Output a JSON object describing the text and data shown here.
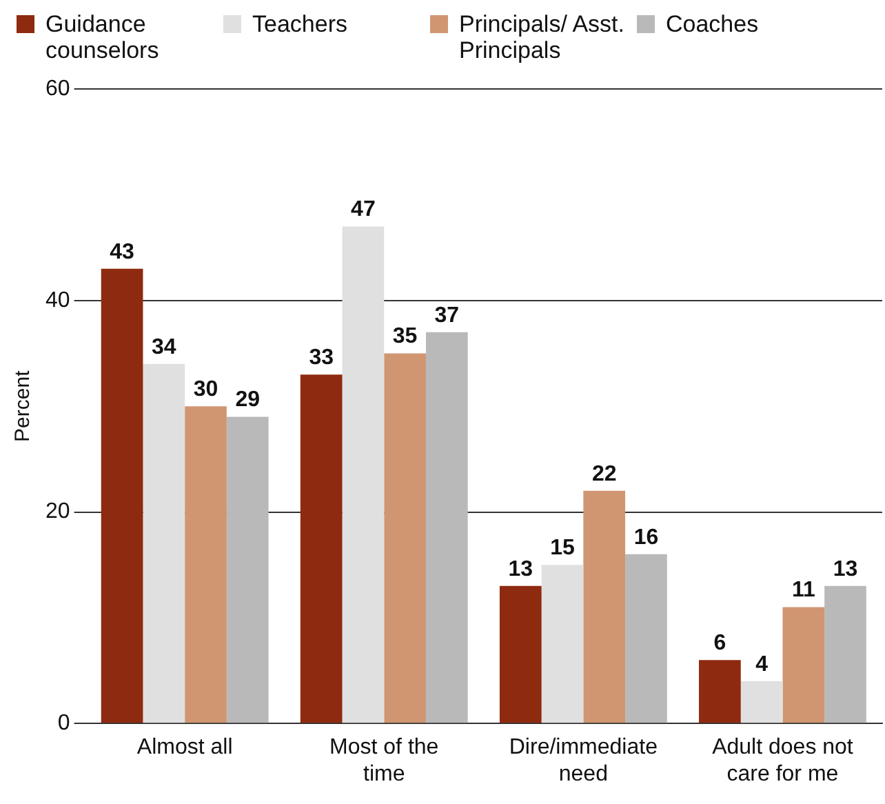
{
  "chart_data": {
    "type": "bar",
    "ylabel": "Percent",
    "categories": [
      "Almost all",
      "Most of the time",
      "Dire/immediate need",
      "Adult does not care for me"
    ],
    "series": [
      {
        "name": "Guidance counselors",
        "color": "#8e2a0f",
        "values": [
          43,
          33,
          13,
          6
        ]
      },
      {
        "name": "Teachers",
        "color": "#e0e0e0",
        "values": [
          34,
          47,
          15,
          4
        ]
      },
      {
        "name": "Principals/ Asst. Principals",
        "color": "#d09672",
        "values": [
          30,
          35,
          22,
          11
        ]
      },
      {
        "name": "Coaches",
        "color": "#b9b9b9",
        "values": [
          29,
          37,
          16,
          13
        ]
      }
    ],
    "ylim": [
      0,
      60
    ],
    "yticks": [
      0,
      20,
      40,
      60
    ],
    "grid": "y",
    "legend": "top left",
    "data_labels": true
  }
}
